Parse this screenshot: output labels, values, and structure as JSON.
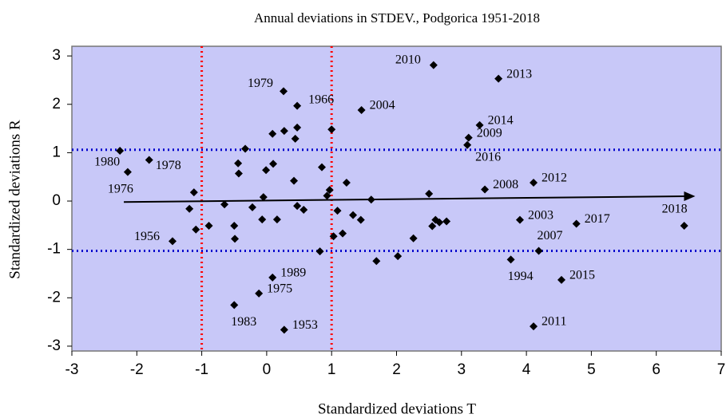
{
  "chart_data": {
    "type": "scatter",
    "title": "Annual deviations in STDEV., Podgorica 1951-2018",
    "x_label": "Standardized deviations T",
    "y_label": "Standardized deviations R",
    "xlim": [
      -3,
      7
    ],
    "ylim": [
      -3.1,
      3.2
    ],
    "xticks": [
      -3,
      -2,
      -1,
      0,
      1,
      2,
      3,
      4,
      5,
      6,
      7
    ],
    "yticks": [
      -3,
      -2,
      -1,
      0,
      1,
      2,
      3
    ],
    "background": "#c8c8f8",
    "color": "#000000",
    "x": [
      -2.26,
      -2.14,
      -1.81,
      -1.12,
      -1.19,
      -1.09,
      -1.45,
      -0.89,
      -0.65,
      -0.5,
      -0.49,
      -0.44,
      -0.43,
      -0.33,
      -0.22,
      -0.07,
      -0.05,
      -0.01,
      0.1,
      0.09,
      0.16,
      0.26,
      0.27,
      0.47,
      0.47,
      0.44,
      0.42,
      0.47,
      0.57,
      0.85,
      0.82,
      0.93,
      0.97,
      1.0,
      1.03,
      1.09,
      1.17,
      1.23,
      1.33,
      1.46,
      1.45,
      1.61,
      1.69,
      2.02,
      2.26,
      2.5,
      2.55,
      2.6,
      2.57,
      2.66,
      2.77,
      3.11,
      3.09,
      3.28,
      3.57,
      3.36,
      3.9,
      3.76,
      4.11,
      4.19,
      4.11,
      4.54,
      4.77,
      6.43,
      0.09,
      -0.12,
      -0.5,
      0.27
    ],
    "values": [
      1.04,
      0.6,
      0.85,
      0.18,
      -0.16,
      -0.59,
      -0.83,
      -0.51,
      -0.07,
      -0.51,
      -0.78,
      0.78,
      0.57,
      1.08,
      -0.13,
      -0.38,
      0.08,
      0.64,
      0.77,
      1.39,
      -0.38,
      2.27,
      1.45,
      1.97,
      1.52,
      1.29,
      0.42,
      -0.1,
      -0.18,
      0.7,
      -1.04,
      0.11,
      0.23,
      1.48,
      -0.73,
      -0.2,
      -0.67,
      0.38,
      -0.29,
      1.88,
      -0.39,
      0.03,
      -1.24,
      -1.14,
      -0.77,
      0.15,
      -0.52,
      -0.39,
      2.81,
      -0.44,
      -0.42,
      1.31,
      1.16,
      1.57,
      2.53,
      0.24,
      -0.39,
      -1.21,
      0.38,
      -1.03,
      -2.59,
      -1.63,
      -0.47,
      -0.51,
      -1.58,
      -1.91,
      -2.15,
      -2.66
    ],
    "point_labels": [
      "1980",
      "1976",
      "1978",
      null,
      null,
      null,
      "1956",
      null,
      null,
      null,
      null,
      null,
      null,
      null,
      null,
      null,
      null,
      null,
      null,
      null,
      null,
      "1979",
      null,
      "1966",
      null,
      null,
      null,
      null,
      null,
      null,
      null,
      null,
      null,
      null,
      null,
      null,
      null,
      null,
      null,
      "2004",
      null,
      null,
      null,
      null,
      null,
      null,
      null,
      null,
      "2010",
      null,
      null,
      "2009",
      "2016",
      "2014",
      "2013",
      "2008",
      "2003",
      "1994",
      "2012",
      "2007",
      "2011",
      "2015",
      "2017",
      "2018",
      "1989",
      "1975",
      "1983",
      "1953"
    ],
    "hlines": {
      "values": [
        1.06,
        -1.03
      ],
      "color": "#0000cc"
    },
    "vlines": {
      "values": [
        -1,
        1
      ],
      "color": "#ff0000"
    },
    "trend_arrow": {
      "x": [
        -2.2,
        6.6
      ],
      "y": [
        -0.02,
        0.1
      ],
      "color": "#000000"
    }
  }
}
